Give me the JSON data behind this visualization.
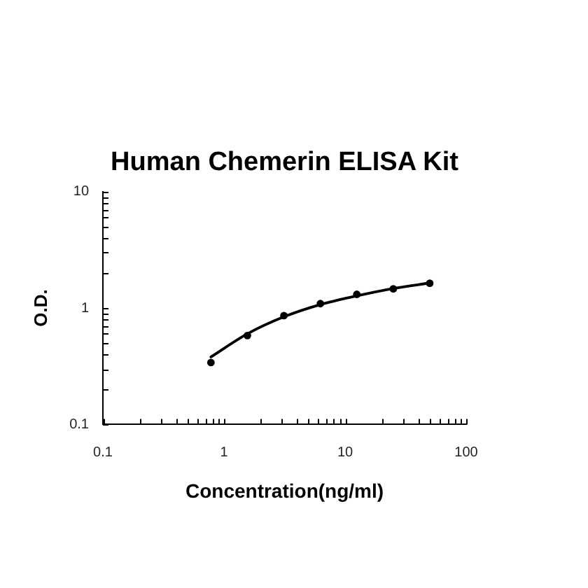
{
  "chart_data": {
    "type": "scatter",
    "title": "Human Chemerin ELISA Kit",
    "xlabel": "Concentration(ng/ml)",
    "ylabel": "O.D.",
    "log": "xy",
    "xlim": [
      0.1,
      100
    ],
    "ylim": [
      0.1,
      10
    ],
    "xticks": [
      0.1,
      {
        "value": 0.2,
        "label": null
      },
      {
        "value": 0.3,
        "label": null
      },
      {
        "value": 0.4,
        "label": null
      },
      {
        "value": 0.5,
        "label": null
      },
      {
        "value": 0.6,
        "label": null
      },
      {
        "value": 0.7,
        "label": null
      },
      {
        "value": 0.8,
        "label": null
      },
      {
        "value": 0.9,
        "label": null
      },
      1,
      {
        "value": 2,
        "label": null
      },
      {
        "value": 3,
        "label": null
      },
      {
        "value": 4,
        "label": null
      },
      {
        "value": 5,
        "label": null
      },
      {
        "value": 6,
        "label": null
      },
      {
        "value": 7,
        "label": null
      },
      {
        "value": 8,
        "label": null
      },
      {
        "value": 9,
        "label": null
      },
      10,
      {
        "value": 20,
        "label": null
      },
      {
        "value": 30,
        "label": null
      },
      {
        "value": 40,
        "label": null
      },
      {
        "value": 50,
        "label": null
      },
      {
        "value": 60,
        "label": null
      },
      {
        "value": 70,
        "label": null
      },
      {
        "value": 80,
        "label": null
      },
      {
        "value": 90,
        "label": null
      },
      100
    ],
    "yticks": [
      0.1,
      {
        "value": 0.2,
        "label": null
      },
      {
        "value": 0.3,
        "label": null
      },
      {
        "value": 0.4,
        "label": null
      },
      {
        "value": 0.5,
        "label": null
      },
      {
        "value": 0.6,
        "label": null
      },
      {
        "value": 0.7,
        "label": null
      },
      {
        "value": 0.8,
        "label": null
      },
      {
        "value": 0.9,
        "label": null
      },
      1,
      {
        "value": 2,
        "label": null
      },
      {
        "value": 3,
        "label": null
      },
      {
        "value": 4,
        "label": null
      },
      {
        "value": 5,
        "label": null
      },
      {
        "value": 6,
        "label": null
      },
      {
        "value": 7,
        "label": null
      },
      {
        "value": 8,
        "label": null
      },
      {
        "value": 9,
        "label": null
      },
      10
    ],
    "grid": false,
    "legend": false,
    "marker": "circle",
    "series": [
      {
        "color": "#000000",
        "x": [
          0.78,
          1.56,
          3.125,
          6.25,
          12.5,
          25,
          50
        ],
        "values": [
          0.34,
          0.58,
          0.86,
          1.09,
          1.31,
          1.46,
          1.63
        ]
      },
      {
        "type": "line",
        "color": "#000000",
        "marker": "none",
        "line_style": "solid",
        "x": [
          0.78,
          1.56,
          3.125,
          6.25,
          12.5,
          25,
          50
        ],
        "values": [
          0.38,
          0.6,
          0.84,
          1.07,
          1.27,
          1.47,
          1.64
        ]
      }
    ]
  }
}
